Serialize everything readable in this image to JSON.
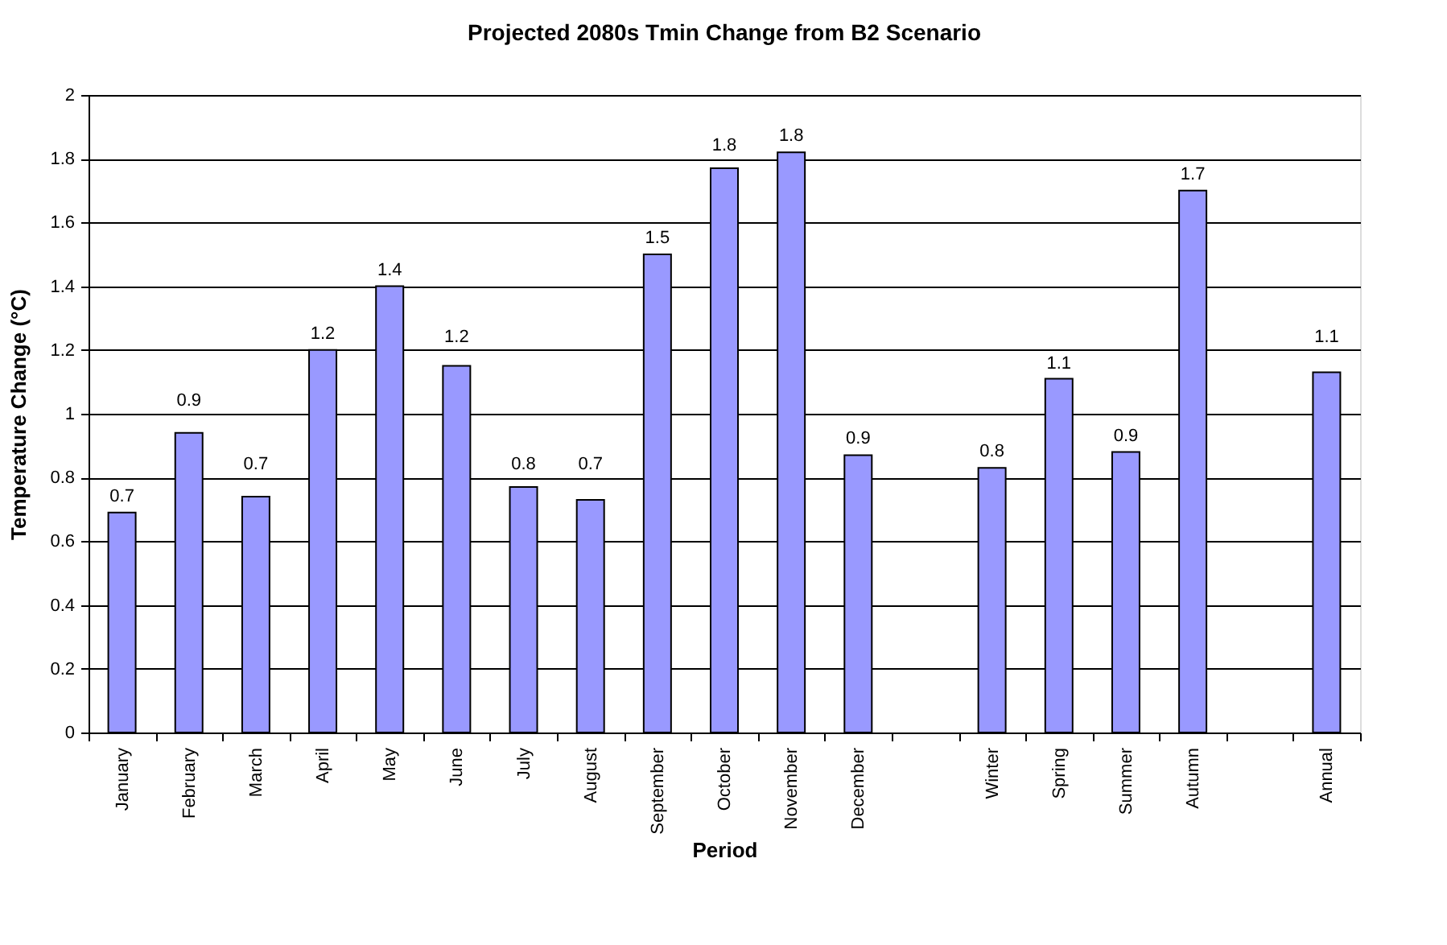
{
  "chart_data": {
    "type": "bar",
    "title": "Projected 2080s Tmin Change from B2 Scenario",
    "xlabel": "Period",
    "ylabel": "Temperature Change (°C)",
    "categories": [
      "January",
      "February",
      "March",
      "April",
      "May",
      "June",
      "July",
      "August",
      "September",
      "October",
      "November",
      "December",
      null,
      "Winter",
      "Spring",
      "Summer",
      "Autumn",
      null,
      "Annual"
    ],
    "values": [
      0.69,
      0.94,
      0.74,
      1.2,
      1.4,
      1.15,
      0.77,
      0.73,
      1.5,
      1.77,
      1.82,
      0.87,
      null,
      0.83,
      1.11,
      0.88,
      1.7,
      null,
      1.13
    ],
    "value_labels": [
      "0.7",
      "0.9",
      "0.7",
      "1.2",
      "1.4",
      "1.2",
      "0.8",
      "0.7",
      "1.5",
      "1.8",
      "1.8",
      "0.9",
      null,
      "0.8",
      "1.1",
      "0.9",
      "1.7",
      null,
      "1.1"
    ],
    "color": "#9999ff",
    "ylim": [
      0,
      2
    ],
    "yticks": [
      0,
      0.2,
      0.4,
      0.6,
      0.8,
      1,
      1.2,
      1.4,
      1.6,
      1.8,
      2
    ],
    "grid": "y"
  }
}
